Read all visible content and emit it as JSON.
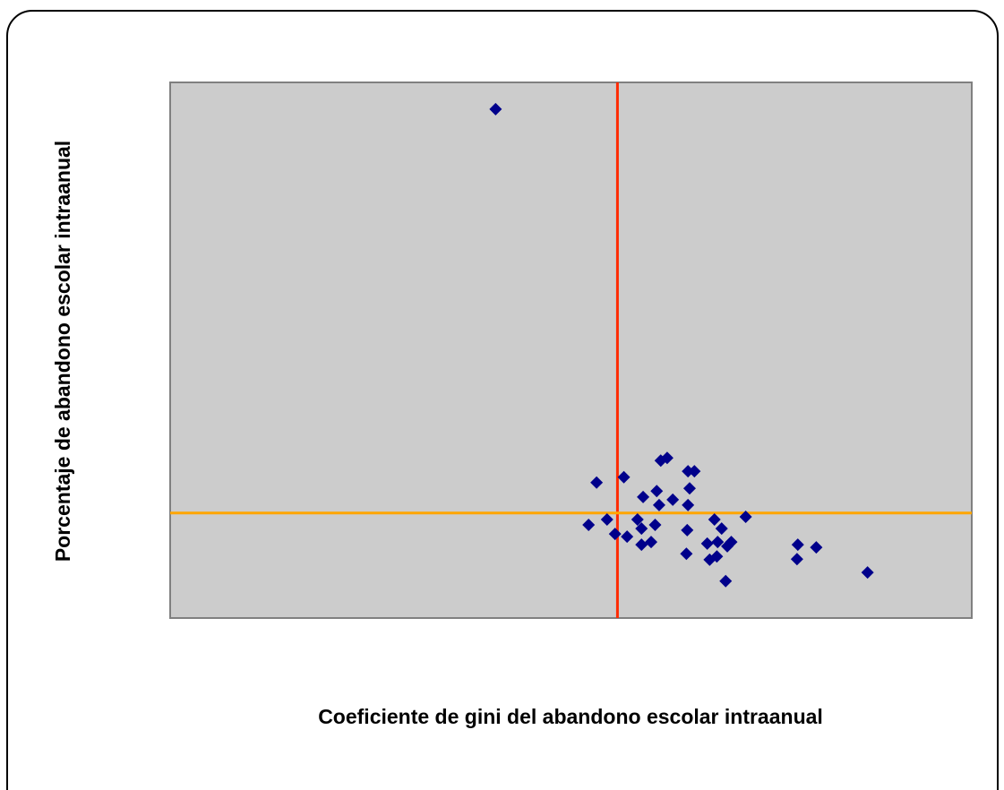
{
  "chart_data": {
    "type": "scatter",
    "xlabel": "Coeficiente de gini del abandono escolar intraanual",
    "ylabel": "Porcentaje de abandono escolar intraanual",
    "xlim": [
      0,
      100
    ],
    "ylim": [
      0,
      100
    ],
    "series": [
      {
        "color": "#00008b",
        "x": [
          40.6,
          53.2,
          56.6,
          61.2,
          62.0,
          64.6,
          65.4,
          59.0,
          60.7,
          64.8,
          62.7,
          61.0,
          64.6,
          52.2,
          54.5,
          55.5,
          57.0,
          58.3,
          58.8,
          60.5,
          58.8,
          60.0,
          64.5,
          64.4,
          67.9,
          68.8,
          71.8,
          67.0,
          68.3,
          69.5,
          70.0,
          67.3,
          68.2,
          69.3,
          78.3,
          80.6,
          78.2,
          87.0
        ],
        "values": [
          95.0,
          25.3,
          26.3,
          29.4,
          29.9,
          27.4,
          27.4,
          22.6,
          23.7,
          24.2,
          22.1,
          21.1,
          21.1,
          17.4,
          18.4,
          15.7,
          15.2,
          18.4,
          16.7,
          17.4,
          13.7,
          14.2,
          16.4,
          12.0,
          18.4,
          16.7,
          18.9,
          13.9,
          14.2,
          13.4,
          14.2,
          10.9,
          11.5,
          6.9,
          13.7,
          13.2,
          11.0,
          8.5
        ]
      }
    ],
    "vline": {
      "value": 55.8,
      "color": "#ff2a00"
    },
    "hline": {
      "value": 19.6,
      "color": "#ffa500"
    },
    "plot_background": "#cccccc"
  }
}
